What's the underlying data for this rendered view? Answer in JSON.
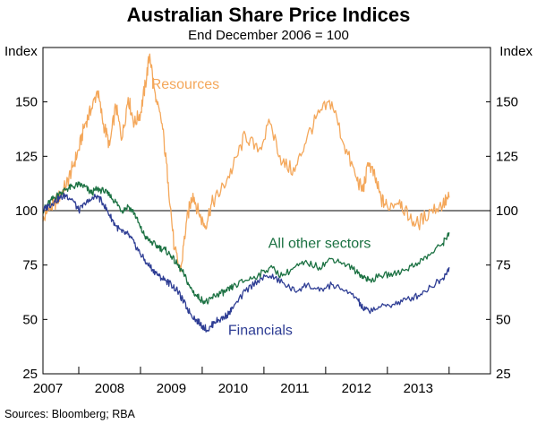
{
  "chart_data": {
    "type": "line",
    "title": "Australian Share Price Indices",
    "subtitle": "End December 2006 = 100",
    "ylabel_left": "Index",
    "ylabel_right": "Index",
    "source": "Sources: Bloomberg; RBA",
    "xlim": [
      2006.42,
      2013.67
    ],
    "ylim": [
      25,
      175
    ],
    "yticks": [
      25,
      50,
      75,
      100,
      125,
      150
    ],
    "year_boundaries": [
      2007,
      2008,
      2009,
      2010,
      2011,
      2012,
      2013
    ],
    "year_labels": [
      "2007",
      "2008",
      "2009",
      "2010",
      "2011",
      "2012",
      "2013"
    ],
    "reference_line": 100,
    "colors": {
      "resources": "#F4A75A",
      "other": "#1B7142",
      "financials": "#2E3D94",
      "axis": "#000000",
      "grid_text": "#000000"
    },
    "series": [
      {
        "key": "resources",
        "name": "Resources",
        "color": "#F4A75A",
        "x": [
          2006.42,
          2006.5,
          2006.6,
          2006.7,
          2006.8,
          2006.9,
          2007.0,
          2007.1,
          2007.2,
          2007.3,
          2007.4,
          2007.5,
          2007.6,
          2007.7,
          2007.8,
          2007.9,
          2008.0,
          2008.08,
          2008.15,
          2008.25,
          2008.35,
          2008.45,
          2008.55,
          2008.65,
          2008.75,
          2008.85,
          2008.95,
          2009.05,
          2009.15,
          2009.3,
          2009.5,
          2009.7,
          2009.9,
          2010.1,
          2010.3,
          2010.5,
          2010.7,
          2010.9,
          2011.1,
          2011.3,
          2011.5,
          2011.6,
          2011.7,
          2011.8,
          2011.9,
          2012.0,
          2012.2,
          2012.35,
          2012.5,
          2012.7,
          2012.9,
          2013.0
        ],
        "y": [
          95,
          100,
          103,
          107,
          112,
          120,
          128,
          140,
          146,
          155,
          140,
          130,
          148,
          133,
          152,
          140,
          145,
          158,
          172,
          150,
          140,
          113,
          82,
          72,
          96,
          108,
          98,
          93,
          103,
          109,
          120,
          135,
          127,
          140,
          122,
          118,
          134,
          145,
          150,
          130,
          115,
          109,
          122,
          115,
          105,
          102,
          105,
          96,
          94,
          100,
          103,
          106
        ]
      },
      {
        "key": "other",
        "name": "All other sectors",
        "color": "#1B7142",
        "x": [
          2006.42,
          2006.5,
          2006.6,
          2006.7,
          2006.8,
          2006.9,
          2007.0,
          2007.1,
          2007.2,
          2007.3,
          2007.4,
          2007.5,
          2007.6,
          2007.7,
          2007.8,
          2007.9,
          2008.0,
          2008.1,
          2008.2,
          2008.3,
          2008.4,
          2008.5,
          2008.6,
          2008.7,
          2008.8,
          2008.9,
          2009.0,
          2009.1,
          2009.2,
          2009.3,
          2009.4,
          2009.5,
          2009.7,
          2009.9,
          2010.1,
          2010.3,
          2010.5,
          2010.7,
          2010.9,
          2011.1,
          2011.3,
          2011.5,
          2011.6,
          2011.7,
          2011.9,
          2012.1,
          2012.3,
          2012.5,
          2012.7,
          2012.9,
          2013.0
        ],
        "y": [
          100,
          103,
          106,
          108,
          110,
          111,
          112,
          111,
          108,
          110,
          109,
          107,
          104,
          100,
          102,
          99,
          92,
          87,
          85,
          83,
          82,
          79,
          75,
          71,
          65,
          61,
          59,
          58,
          61,
          62,
          63,
          65,
          68,
          70,
          74,
          70,
          74,
          76,
          74,
          78,
          76,
          72,
          70,
          68,
          70,
          71,
          73,
          76,
          80,
          85,
          90
        ]
      },
      {
        "key": "financials",
        "name": "Financials",
        "color": "#2E3D94",
        "x": [
          2006.42,
          2006.5,
          2006.6,
          2006.7,
          2006.8,
          2006.9,
          2007.0,
          2007.1,
          2007.2,
          2007.3,
          2007.4,
          2007.5,
          2007.6,
          2007.7,
          2007.8,
          2007.9,
          2008.0,
          2008.1,
          2008.2,
          2008.3,
          2008.4,
          2008.5,
          2008.6,
          2008.7,
          2008.8,
          2008.9,
          2009.0,
          2009.1,
          2009.2,
          2009.3,
          2009.4,
          2009.5,
          2009.7,
          2009.9,
          2010.1,
          2010.3,
          2010.5,
          2010.7,
          2010.9,
          2011.1,
          2011.3,
          2011.5,
          2011.6,
          2011.7,
          2011.9,
          2012.1,
          2012.3,
          2012.5,
          2012.7,
          2012.9,
          2013.0
        ],
        "y": [
          100,
          102,
          104,
          106,
          107,
          105,
          100,
          103,
          105,
          107,
          103,
          98,
          93,
          90,
          89,
          85,
          80,
          76,
          73,
          70,
          68,
          66,
          63,
          58,
          53,
          50,
          47,
          45,
          49,
          50,
          52,
          55,
          63,
          68,
          70,
          67,
          63,
          66,
          63,
          66,
          63,
          60,
          55,
          54,
          56,
          57,
          59,
          61,
          65,
          69,
          74
        ]
      }
    ],
    "annotations": [
      {
        "key": "resources",
        "text": "Resources",
        "x": 2008.17,
        "y": 156
      },
      {
        "key": "other",
        "text": "All other sectors",
        "x": 2010.07,
        "y": 83
      },
      {
        "key": "financials",
        "text": "Financials",
        "x": 2009.42,
        "y": 43
      }
    ]
  }
}
